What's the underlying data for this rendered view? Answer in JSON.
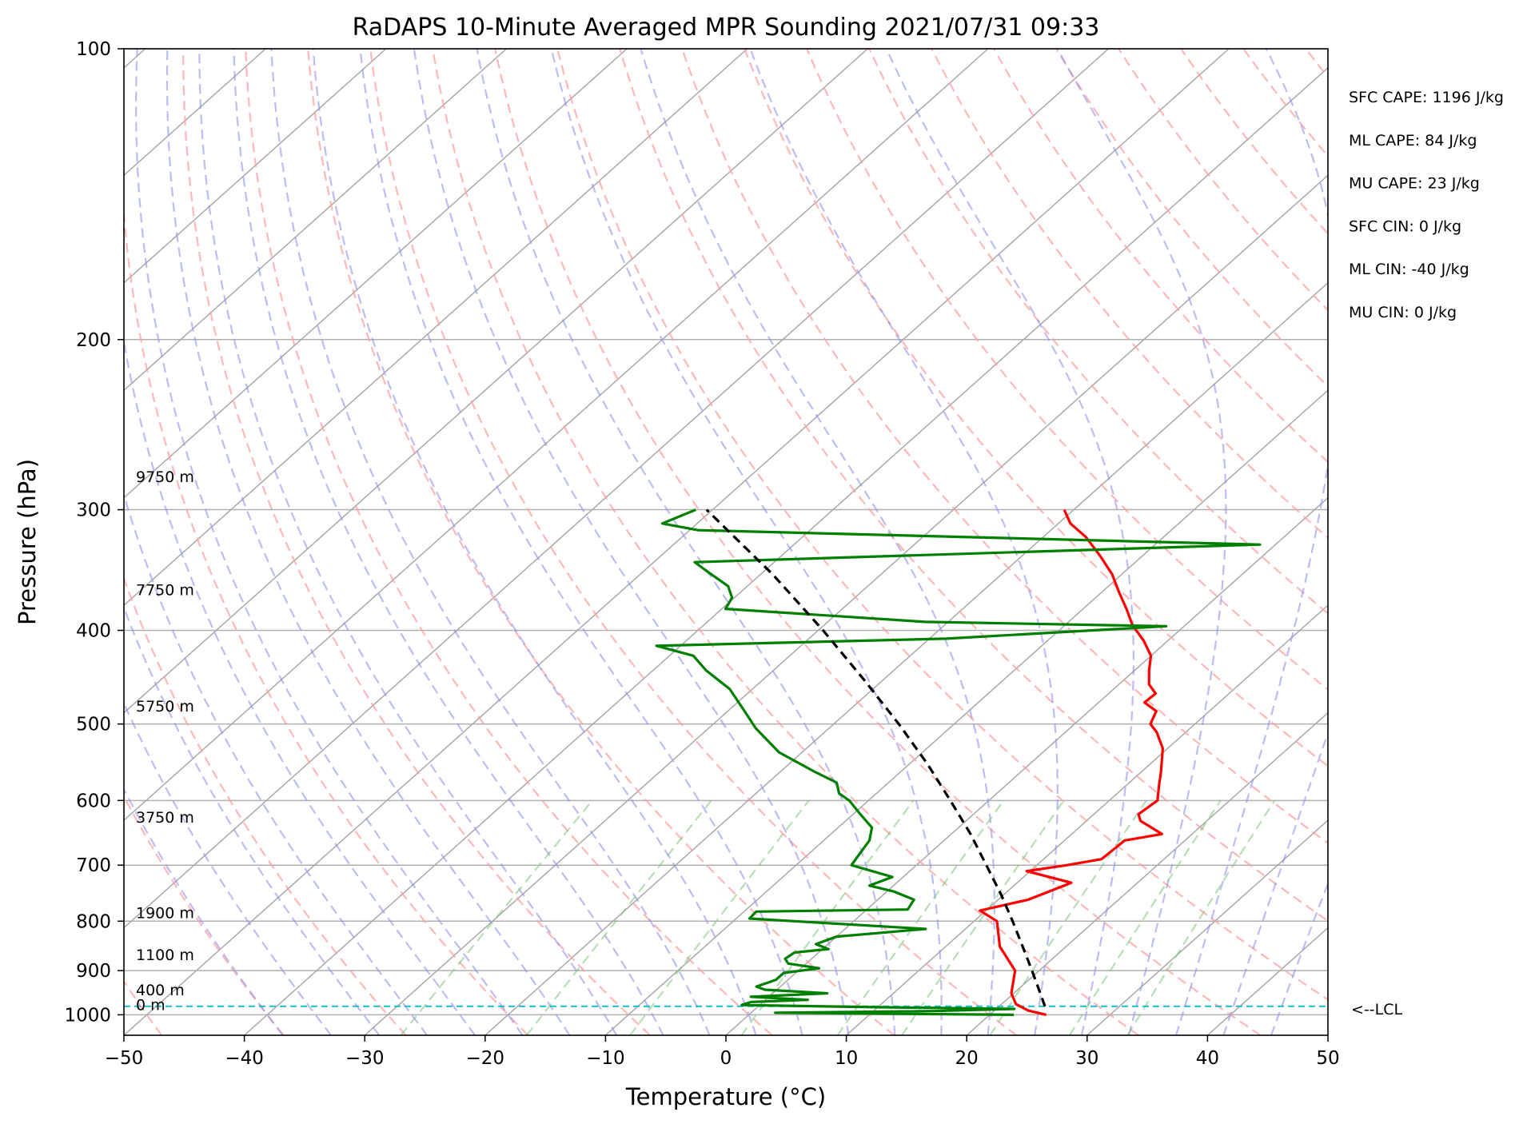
{
  "chart_data": {
    "type": "line",
    "title": "RaDAPS 10-Minute Averaged MPR Sounding 2021/07/31 09:33",
    "xlabel": "Temperature (°C)",
    "ylabel": "Pressure (hPa)",
    "xlim": [
      -50,
      50
    ],
    "ylim": [
      1050,
      100
    ],
    "y_scale": "log",
    "skew_t": true,
    "grid": true,
    "x_ticks": [
      "−50",
      "−40",
      "−30",
      "−20",
      "−10",
      "0",
      "10",
      "20",
      "30",
      "40",
      "50"
    ],
    "x_tick_values": [
      -50,
      -40,
      -30,
      -20,
      -10,
      0,
      10,
      20,
      30,
      40,
      50
    ],
    "y_ticks": [
      "100",
      "200",
      "300",
      "400",
      "500",
      "600",
      "700",
      "800",
      "900",
      "1000"
    ],
    "y_tick_values": [
      100,
      200,
      300,
      400,
      500,
      600,
      700,
      800,
      900,
      1000
    ],
    "height_labels": [
      {
        "text": "9750 m",
        "p": 284
      },
      {
        "text": "7750 m",
        "p": 372
      },
      {
        "text": "5750 m",
        "p": 491
      },
      {
        "text": "3750 m",
        "p": 640
      },
      {
        "text": "1900 m",
        "p": 803
      },
      {
        "text": "1100 m",
        "p": 888
      },
      {
        "text": "400 m",
        "p": 966
      },
      {
        "text": "0 m",
        "p": 1000
      }
    ],
    "stats": [
      "SFC CAPE: 1196 J/kg",
      "ML CAPE: 84 J/kg",
      "MU CAPE: 23 J/kg",
      "SFC CIN: 0 J/kg",
      "ML CIN: -40 J/kg",
      "MU CIN: 0 J/kg"
    ],
    "lcl": {
      "label": "<--LCL",
      "p": 980
    },
    "series": [
      {
        "name": "",
        "color": "#ff0000",
        "points": [
          {
            "p": 1000,
            "t": 24.7
          },
          {
            "p": 990,
            "t": 22.8
          },
          {
            "p": 975,
            "t": 21.2
          },
          {
            "p": 950,
            "t": 19.8
          },
          {
            "p": 900,
            "t": 18.0
          },
          {
            "p": 850,
            "t": 14.5
          },
          {
            "p": 800,
            "t": 11.9
          },
          {
            "p": 780,
            "t": 9.5
          },
          {
            "p": 760,
            "t": 12.5
          },
          {
            "p": 730,
            "t": 14.5
          },
          {
            "p": 710,
            "t": 9.7
          },
          {
            "p": 700,
            "t": 12.5
          },
          {
            "p": 690,
            "t": 14.8
          },
          {
            "p": 660,
            "t": 15.0
          },
          {
            "p": 650,
            "t": 17.5
          },
          {
            "p": 630,
            "t": 14.5
          },
          {
            "p": 620,
            "t": 13.7
          },
          {
            "p": 600,
            "t": 14.0
          },
          {
            "p": 580,
            "t": 12.8
          },
          {
            "p": 560,
            "t": 11.6
          },
          {
            "p": 530,
            "t": 9.6
          },
          {
            "p": 510,
            "t": 7.6
          },
          {
            "p": 500,
            "t": 6.3
          },
          {
            "p": 485,
            "t": 5.6
          },
          {
            "p": 475,
            "t": 3.8
          },
          {
            "p": 465,
            "t": 3.9
          },
          {
            "p": 455,
            "t": 2.5
          },
          {
            "p": 440,
            "t": 1.2
          },
          {
            "p": 425,
            "t": 0.0
          },
          {
            "p": 410,
            "t": -2.0
          },
          {
            "p": 395,
            "t": -4.4
          },
          {
            "p": 380,
            "t": -6.4
          },
          {
            "p": 365,
            "t": -8.6
          },
          {
            "p": 350,
            "t": -10.8
          },
          {
            "p": 335,
            "t": -13.5
          },
          {
            "p": 320,
            "t": -16.5
          },
          {
            "p": 310,
            "t": -19.0
          },
          {
            "p": 300,
            "t": -20.8
          }
        ]
      },
      {
        "name": "",
        "color": "#008000",
        "points": [
          {
            "p": 1000,
            "t": 22.0
          },
          {
            "p": 995,
            "t": 2.0
          },
          {
            "p": 991,
            "t": 15.0
          },
          {
            "p": 986,
            "t": 21.5
          },
          {
            "p": 982,
            "t": 10.0
          },
          {
            "p": 977,
            "t": -1.5
          },
          {
            "p": 970,
            "t": -1.0
          },
          {
            "p": 965,
            "t": 3.5
          },
          {
            "p": 958,
            "t": -1.5
          },
          {
            "p": 950,
            "t": 4.5
          },
          {
            "p": 942,
            "t": -1.0
          },
          {
            "p": 935,
            "t": -2.0
          },
          {
            "p": 920,
            "t": -1.0
          },
          {
            "p": 905,
            "t": -1.0
          },
          {
            "p": 895,
            "t": 1.5
          },
          {
            "p": 885,
            "t": -1.5
          },
          {
            "p": 875,
            "t": -2.2
          },
          {
            "p": 862,
            "t": -2.0
          },
          {
            "p": 855,
            "t": 0.5
          },
          {
            "p": 845,
            "t": -1.0
          },
          {
            "p": 830,
            "t": 0.0
          },
          {
            "p": 815,
            "t": 6.7
          },
          {
            "p": 795,
            "t": -8.9
          },
          {
            "p": 782,
            "t": -9.0
          },
          {
            "p": 778,
            "t": 3.4
          },
          {
            "p": 760,
            "t": 3.0
          },
          {
            "p": 745,
            "t": 0.5
          },
          {
            "p": 735,
            "t": -2.0
          },
          {
            "p": 720,
            "t": -0.9
          },
          {
            "p": 700,
            "t": -5.4
          },
          {
            "p": 680,
            "t": -5.8
          },
          {
            "p": 660,
            "t": -6.2
          },
          {
            "p": 640,
            "t": -7.2
          },
          {
            "p": 620,
            "t": -9.4
          },
          {
            "p": 600,
            "t": -11.6
          },
          {
            "p": 590,
            "t": -13.1
          },
          {
            "p": 575,
            "t": -14.3
          },
          {
            "p": 560,
            "t": -17.2
          },
          {
            "p": 535,
            "t": -21.9
          },
          {
            "p": 505,
            "t": -26.1
          },
          {
            "p": 485,
            "t": -28.6
          },
          {
            "p": 460,
            "t": -31.9
          },
          {
            "p": 440,
            "t": -35.6
          },
          {
            "p": 425,
            "t": -38.0
          },
          {
            "p": 415,
            "t": -42.0
          },
          {
            "p": 408,
            "t": -18.6
          },
          {
            "p": 396,
            "t": -1.5
          },
          {
            "p": 392,
            "t": -21.9
          },
          {
            "p": 380,
            "t": -39.7
          },
          {
            "p": 370,
            "t": -40.2
          },
          {
            "p": 360,
            "t": -41.6
          },
          {
            "p": 348,
            "t": -44.6
          },
          {
            "p": 340,
            "t": -46.6
          },
          {
            "p": 326,
            "t": -1.3
          },
          {
            "p": 315,
            "t": -49.3
          },
          {
            "p": 310,
            "t": -52.9
          },
          {
            "p": 300,
            "t": -51.4
          }
        ]
      },
      {
        "name": "",
        "color": "#000000",
        "dashed": true,
        "points": [
          {
            "p": 980,
            "t": 23.8
          },
          {
            "p": 950,
            "t": 22.2
          },
          {
            "p": 900,
            "t": 19.4
          },
          {
            "p": 850,
            "t": 16.4
          },
          {
            "p": 800,
            "t": 13.2
          },
          {
            "p": 750,
            "t": 9.7
          },
          {
            "p": 700,
            "t": 5.8
          },
          {
            "p": 650,
            "t": 1.6
          },
          {
            "p": 600,
            "t": -3.2
          },
          {
            "p": 550,
            "t": -8.5
          },
          {
            "p": 500,
            "t": -14.6
          },
          {
            "p": 450,
            "t": -21.6
          },
          {
            "p": 400,
            "t": -29.6
          },
          {
            "p": 350,
            "t": -39.0
          },
          {
            "p": 300,
            "t": -50.5
          }
        ]
      }
    ]
  }
}
